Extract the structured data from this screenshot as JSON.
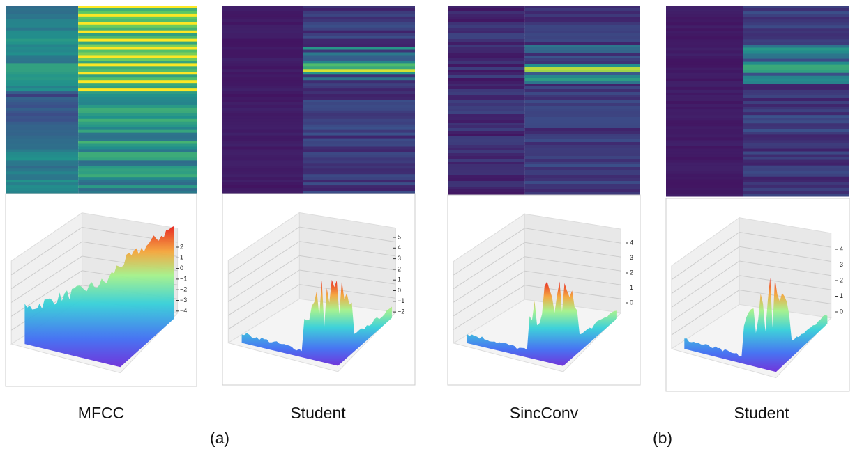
{
  "panels": [
    {
      "label": "MFCC",
      "z_ticks": [
        "2",
        "1",
        "0",
        "−1",
        "−2",
        "−3",
        "−4"
      ]
    },
    {
      "label": "Student",
      "z_ticks": [
        "5",
        "4",
        "3",
        "2",
        "1",
        "0",
        "−1",
        "−2"
      ]
    },
    {
      "label": "SincConv",
      "z_ticks": [
        "4",
        "3",
        "2",
        "1",
        "0"
      ]
    },
    {
      "label": "Student",
      "z_ticks": [
        "4",
        "3",
        "2",
        "1",
        "0"
      ]
    }
  ],
  "groups": [
    {
      "label": "(a)"
    },
    {
      "label": "(b)"
    }
  ]
}
